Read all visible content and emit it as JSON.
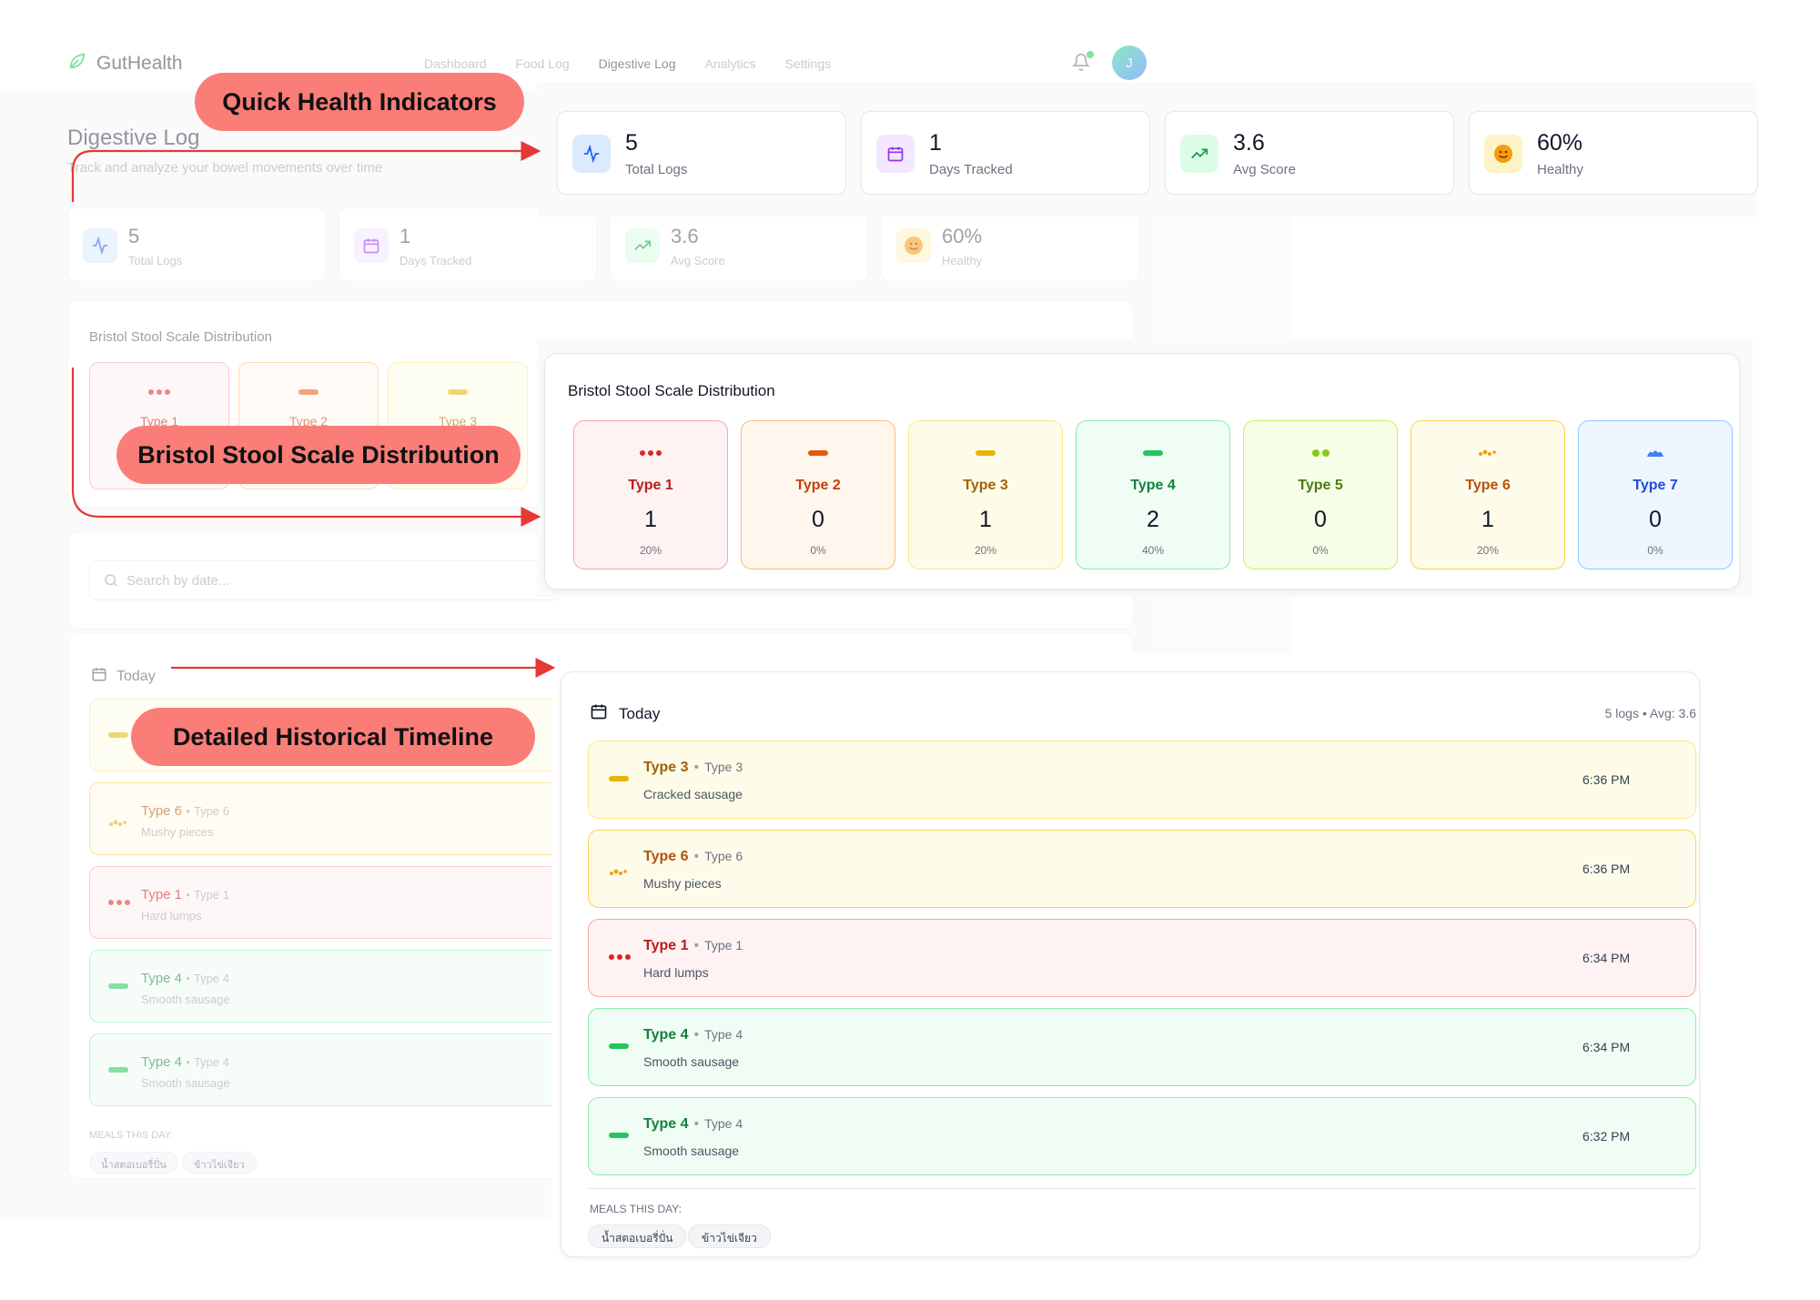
{
  "app": {
    "brand": "GutHealth",
    "nav": [
      "Dashboard",
      "Food Log",
      "Digestive Log",
      "Analytics",
      "Settings"
    ],
    "active_nav": "Digestive Log",
    "avatar_initial": "J"
  },
  "page": {
    "title": "Digestive Log",
    "subtitle": "Track and analyze your bowel movements over time"
  },
  "stats": [
    {
      "value": "5",
      "label": "Total Logs",
      "icon": "activity-icon",
      "bg": "#dbeafe",
      "fg": "#2563eb"
    },
    {
      "value": "1",
      "label": "Days Tracked",
      "icon": "calendar-icon",
      "bg": "#f3e8ff",
      "fg": "#9333ea"
    },
    {
      "value": "3.6",
      "label": "Avg Score",
      "icon": "trending-up-icon",
      "bg": "#dcfce7",
      "fg": "#16a34a"
    },
    {
      "value": "60%",
      "label": "Healthy",
      "icon": "smile-emoji-icon",
      "bg": "#fef3c7",
      "fg": "#f59e0b"
    }
  ],
  "bristol": {
    "title": "Bristol Stool Scale Distribution",
    "types": [
      {
        "name": "Type 1",
        "count": "1",
        "percent": "20%",
        "bg": "#fef2f2",
        "border": "#fca5a5",
        "fg": "#b91c1c",
        "glyph": "#dc2626"
      },
      {
        "name": "Type 2",
        "count": "0",
        "percent": "0%",
        "bg": "#fff7ed",
        "border": "#fdba74",
        "fg": "#c2410c",
        "glyph": "#ea580c"
      },
      {
        "name": "Type 3",
        "count": "1",
        "percent": "20%",
        "bg": "#fefce8",
        "border": "#fde68a",
        "fg": "#a16207",
        "glyph": "#eab308"
      },
      {
        "name": "Type 4",
        "count": "2",
        "percent": "40%",
        "bg": "#f0fdf4",
        "border": "#86efac",
        "fg": "#15803d",
        "glyph": "#22c55e"
      },
      {
        "name": "Type 5",
        "count": "0",
        "percent": "0%",
        "bg": "#f7fee7",
        "border": "#bef264",
        "fg": "#4d7c0f",
        "glyph": "#84cc16"
      },
      {
        "name": "Type 6",
        "count": "1",
        "percent": "20%",
        "bg": "#fffbeb",
        "border": "#fcd34d",
        "fg": "#b45309",
        "glyph": "#f59e0b"
      },
      {
        "name": "Type 7",
        "count": "0",
        "percent": "0%",
        "bg": "#eff6ff",
        "border": "#93c5fd",
        "fg": "#1d4ed8",
        "glyph": "#3b82f6"
      }
    ]
  },
  "search": {
    "placeholder": "Search by date..."
  },
  "timeline": {
    "day_label": "Today",
    "summary": "5 logs • Avg: 3.6",
    "separator": "•",
    "logs": [
      {
        "type": "Type 3",
        "sub": "Type 3",
        "desc": "Cracked sausage",
        "time": "6:36 PM",
        "bg": "#fefce8",
        "border": "#fde68a",
        "fg": "#a16207",
        "glyph": "#eab308"
      },
      {
        "type": "Type 6",
        "sub": "Type 6",
        "desc": "Mushy pieces",
        "time": "6:36 PM",
        "bg": "#fffbeb",
        "border": "#fcd34d",
        "fg": "#b45309",
        "glyph": "#f59e0b"
      },
      {
        "type": "Type 1",
        "sub": "Type 1",
        "desc": "Hard lumps",
        "time": "6:34 PM",
        "bg": "#fef2f2",
        "border": "#fca5a5",
        "fg": "#b91c1c",
        "glyph": "#dc2626"
      },
      {
        "type": "Type 4",
        "sub": "Type 4",
        "desc": "Smooth sausage",
        "time": "6:34 PM",
        "bg": "#f0fdf4",
        "border": "#86efac",
        "fg": "#15803d",
        "glyph": "#22c55e"
      },
      {
        "type": "Type 4",
        "sub": "Type 4",
        "desc": "Smooth sausage",
        "time": "6:32 PM",
        "bg": "#f0fdf4",
        "border": "#86efac",
        "fg": "#15803d",
        "glyph": "#22c55e"
      }
    ],
    "meals_heading": "MEALS THIS DAY:",
    "meals": [
      "น้ำสตอเบอรี่ปั่น",
      "ข้าวไข่เจียว"
    ]
  },
  "callouts": {
    "quick": "Quick Health Indicators",
    "bristol": "Bristol Stool Scale Distribution",
    "timeline": "Detailed Historical Timeline"
  },
  "colors": {
    "callout": "#fa7d78",
    "arrow": "#e53935"
  }
}
